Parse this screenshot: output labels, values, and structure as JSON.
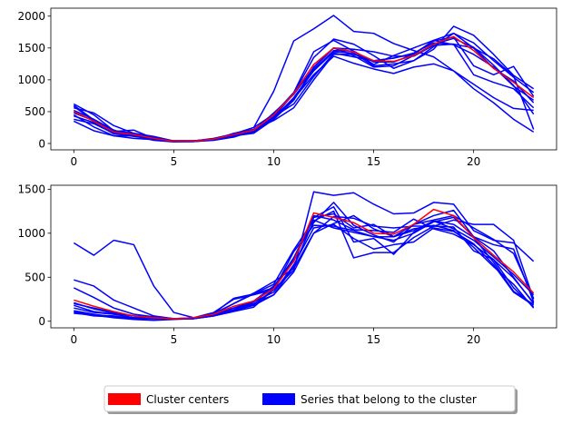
{
  "chart_data": [
    {
      "type": "line",
      "title": "",
      "xlabel": "",
      "ylabel": "",
      "xlim": [
        -1.15,
        24.15
      ],
      "ylim": [
        -100,
        2125
      ],
      "xticks": [
        0,
        5,
        10,
        15,
        20
      ],
      "yticks": [
        0,
        500,
        1000,
        1500,
        2000
      ],
      "x": [
        0,
        1,
        2,
        3,
        4,
        5,
        6,
        7,
        8,
        9,
        10,
        11,
        12,
        13,
        14,
        15,
        16,
        17,
        18,
        19,
        20,
        21,
        22,
        23
      ],
      "center_color": "#ff0000",
      "member_color": "#0000ff",
      "series": [
        {
          "name": "member-1",
          "role": "member",
          "values": [
            620,
            450,
            200,
            150,
            100,
            40,
            40,
            60,
            150,
            250,
            820,
            1610,
            1800,
            2010,
            1760,
            1730,
            1570,
            1460,
            1360,
            1140,
            860,
            640,
            380,
            180
          ]
        },
        {
          "name": "member-2",
          "role": "member",
          "values": [
            560,
            480,
            280,
            160,
            70,
            30,
            30,
            50,
            100,
            200,
            480,
            770,
            1190,
            1500,
            1480,
            1440,
            1370,
            1370,
            1540,
            1560,
            1500,
            1330,
            1060,
            220
          ]
        },
        {
          "name": "member-3",
          "role": "member",
          "values": [
            350,
            200,
            120,
            120,
            50,
            25,
            30,
            60,
            150,
            200,
            420,
            700,
            1080,
            1370,
            1260,
            1170,
            1100,
            1200,
            1250,
            1140,
            930,
            720,
            550,
            520
          ]
        },
        {
          "name": "member-4",
          "role": "member",
          "values": [
            380,
            310,
            160,
            110,
            70,
            30,
            35,
            70,
            130,
            200,
            400,
            720,
            1140,
            1440,
            1420,
            1220,
            1250,
            1300,
            1520,
            1730,
            1580,
            1300,
            1040,
            800
          ]
        },
        {
          "name": "member-5",
          "role": "member",
          "values": [
            430,
            330,
            150,
            120,
            90,
            40,
            40,
            80,
            150,
            220,
            420,
            780,
            1350,
            1640,
            1560,
            1380,
            1180,
            1300,
            1480,
            1840,
            1700,
            1400,
            1070,
            860
          ]
        },
        {
          "name": "member-6",
          "role": "member",
          "values": [
            600,
            370,
            190,
            210,
            80,
            40,
            40,
            70,
            150,
            250,
            460,
            800,
            1440,
            1620,
            1450,
            1240,
            1380,
            1500,
            1620,
            1730,
            1500,
            1180,
            980,
            640
          ]
        },
        {
          "name": "member-7",
          "role": "member",
          "values": [
            580,
            360,
            170,
            140,
            60,
            40,
            40,
            70,
            130,
            180,
            420,
            620,
            1050,
            1420,
            1360,
            1300,
            1340,
            1420,
            1580,
            1560,
            1080,
            960,
            860,
            560
          ]
        },
        {
          "name": "member-8",
          "role": "member",
          "values": [
            520,
            380,
            210,
            120,
            100,
            35,
            40,
            70,
            120,
            200,
            380,
            680,
            1160,
            1460,
            1450,
            1280,
            1280,
            1400,
            1620,
            1550,
            1400,
            1200,
            900,
            680
          ]
        },
        {
          "name": "member-9",
          "role": "member",
          "values": [
            480,
            360,
            200,
            160,
            110,
            40,
            40,
            60,
            160,
            220,
            360,
            560,
            1000,
            1400,
            1400,
            1300,
            1340,
            1410,
            1610,
            1670,
            1220,
            1080,
            1210,
            740
          ]
        },
        {
          "name": "member-10",
          "role": "member",
          "values": [
            450,
            260,
            120,
            80,
            60,
            30,
            30,
            60,
            120,
            160,
            380,
            680,
            1200,
            1500,
            1380,
            1200,
            1220,
            1380,
            1560,
            1650,
            1510,
            1230,
            910,
            460
          ]
        },
        {
          "name": "cluster-center",
          "role": "center",
          "values": [
            500,
            350,
            180,
            140,
            80,
            35,
            38,
            70,
            140,
            210,
            450,
            780,
            1240,
            1500,
            1440,
            1300,
            1290,
            1380,
            1560,
            1680,
            1460,
            1180,
            960,
            720
          ]
        }
      ]
    },
    {
      "type": "line",
      "title": "",
      "xlabel": "",
      "ylabel": "",
      "xlim": [
        -1.15,
        24.15
      ],
      "ylim": [
        -75,
        1545
      ],
      "xticks": [
        0,
        5,
        10,
        15,
        20
      ],
      "yticks": [
        0,
        500,
        1000,
        1500
      ],
      "x": [
        0,
        1,
        2,
        3,
        4,
        5,
        6,
        7,
        8,
        9,
        10,
        11,
        12,
        13,
        14,
        15,
        16,
        17,
        18,
        19,
        20,
        21,
        22,
        23
      ],
      "center_color": "#ff0000",
      "member_color": "#0000ff",
      "series": [
        {
          "name": "member-1",
          "role": "member",
          "values": [
            890,
            750,
            920,
            870,
            400,
            100,
            40,
            80,
            200,
            320,
            450,
            600,
            1000,
            1110,
            1200,
            1050,
            960,
            1100,
            1150,
            1200,
            1060,
            930,
            770,
            260
          ]
        },
        {
          "name": "member-2",
          "role": "member",
          "values": [
            470,
            400,
            240,
            150,
            60,
            30,
            40,
            100,
            250,
            300,
            360,
            580,
            1470,
            1430,
            1460,
            1330,
            1220,
            1230,
            1350,
            1330,
            1030,
            920,
            890,
            680
          ]
        },
        {
          "name": "member-3",
          "role": "member",
          "values": [
            380,
            270,
            150,
            80,
            50,
            30,
            30,
            90,
            200,
            310,
            380,
            720,
            1120,
            1350,
            1090,
            980,
            900,
            1100,
            1200,
            1260,
            960,
            870,
            820,
            220
          ]
        },
        {
          "name": "member-4",
          "role": "member",
          "values": [
            200,
            150,
            100,
            60,
            40,
            30,
            30,
            80,
            150,
            200,
            300,
            560,
            1000,
            1190,
            1170,
            1080,
            1060,
            1080,
            1080,
            1150,
            1100,
            1100,
            920,
            250
          ]
        },
        {
          "name": "member-5",
          "role": "member",
          "values": [
            150,
            100,
            80,
            40,
            30,
            30,
            30,
            60,
            120,
            180,
            300,
            620,
            1140,
            1250,
            720,
            780,
            780,
            950,
            1080,
            1070,
            800,
            700,
            380,
            160
          ]
        },
        {
          "name": "member-6",
          "role": "member",
          "values": [
            120,
            80,
            50,
            30,
            30,
            30,
            30,
            70,
            120,
            220,
            380,
            720,
            1180,
            1300,
            900,
            940,
            760,
            1010,
            1140,
            1050,
            920,
            730,
            530,
            300
          ]
        },
        {
          "name": "member-7",
          "role": "member",
          "values": [
            100,
            60,
            50,
            30,
            30,
            30,
            30,
            60,
            130,
            220,
            330,
            640,
            1060,
            1100,
            940,
            820,
            870,
            900,
            1060,
            1020,
            880,
            640,
            330,
            180
          ]
        },
        {
          "name": "member-8",
          "role": "member",
          "values": [
            210,
            140,
            90,
            60,
            50,
            30,
            30,
            70,
            150,
            230,
            400,
            680,
            1200,
            1150,
            1040,
            1030,
            1010,
            1160,
            1050,
            990,
            870,
            700,
            490,
            210
          ]
        },
        {
          "name": "member-9",
          "role": "member",
          "values": [
            90,
            70,
            60,
            30,
            30,
            30,
            30,
            90,
            260,
            310,
            420,
            810,
            1150,
            1060,
            1010,
            960,
            920,
            1000,
            1130,
            1180,
            960,
            800,
            500,
            200
          ]
        },
        {
          "name": "member-10",
          "role": "member",
          "values": [
            180,
            110,
            80,
            40,
            40,
            30,
            30,
            60,
            110,
            160,
            360,
            700,
            1180,
            1220,
            1060,
            1100,
            960,
            1050,
            1090,
            1030,
            840,
            620,
            420,
            150
          ]
        },
        {
          "name": "member-11",
          "role": "member",
          "values": [
            110,
            70,
            40,
            20,
            10,
            20,
            30,
            80,
            130,
            190,
            360,
            790,
            1090,
            1080,
            1030,
            960,
            960,
            1030,
            1140,
            1100,
            950,
            670,
            340,
            190
          ]
        },
        {
          "name": "cluster-center",
          "role": "center",
          "values": [
            240,
            170,
            110,
            60,
            40,
            30,
            40,
            80,
            170,
            230,
            370,
            680,
            1230,
            1180,
            1120,
            1000,
            990,
            1100,
            1270,
            1200,
            950,
            750,
            560,
            320
          ]
        }
      ]
    }
  ],
  "legend": {
    "placement": "bottom-center",
    "entries": [
      {
        "label": "Cluster centers",
        "color": "#ff0000"
      },
      {
        "label": "Series that belong to the cluster",
        "color": "#0000ff"
      }
    ]
  }
}
